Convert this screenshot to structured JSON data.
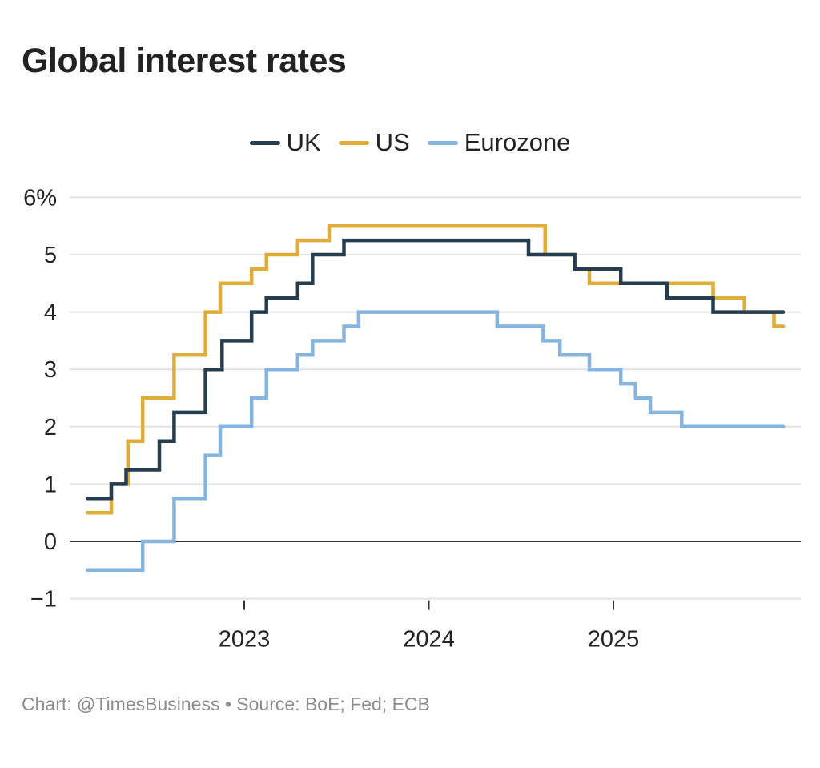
{
  "chart_data": {
    "type": "line",
    "step": true,
    "title": "Global interest rates",
    "xlabel": "",
    "ylabel": "",
    "ylim": [
      -1,
      6
    ],
    "xlim": [
      2022.15,
      2025.92
    ],
    "yticks": [
      6,
      5,
      4,
      3,
      2,
      1,
      0,
      -1
    ],
    "ytick_labels": [
      "6%",
      "5",
      "4",
      "3",
      "2",
      "1",
      "0",
      "−1"
    ],
    "xticks": [
      2023,
      2024,
      2025
    ],
    "xtick_labels": [
      "2023",
      "2024",
      "2025"
    ],
    "grid": true,
    "legend": "top-center",
    "series": [
      {
        "name": "UK",
        "color": "#253d4e",
        "points": [
          [
            2022.15,
            0.75
          ],
          [
            2022.28,
            1.0
          ],
          [
            2022.36,
            1.25
          ],
          [
            2022.54,
            1.75
          ],
          [
            2022.62,
            2.25
          ],
          [
            2022.79,
            3.0
          ],
          [
            2022.88,
            3.5
          ],
          [
            2023.04,
            4.0
          ],
          [
            2023.12,
            4.25
          ],
          [
            2023.29,
            4.5
          ],
          [
            2023.37,
            5.0
          ],
          [
            2023.54,
            5.25
          ],
          [
            2024.54,
            5.0
          ],
          [
            2024.79,
            4.75
          ],
          [
            2025.04,
            4.5
          ],
          [
            2025.29,
            4.25
          ],
          [
            2025.54,
            4.0
          ],
          [
            2025.92,
            4.0
          ]
        ]
      },
      {
        "name": "US",
        "color": "#e0ac3a",
        "points": [
          [
            2022.15,
            0.5
          ],
          [
            2022.28,
            1.0
          ],
          [
            2022.37,
            1.75
          ],
          [
            2022.45,
            2.5
          ],
          [
            2022.62,
            3.25
          ],
          [
            2022.79,
            4.0
          ],
          [
            2022.87,
            4.5
          ],
          [
            2023.04,
            4.75
          ],
          [
            2023.12,
            5.0
          ],
          [
            2023.29,
            5.25
          ],
          [
            2023.46,
            5.5
          ],
          [
            2024.63,
            5.0
          ],
          [
            2024.79,
            4.75
          ],
          [
            2024.87,
            4.5
          ],
          [
            2025.54,
            4.25
          ],
          [
            2025.71,
            4.0
          ],
          [
            2025.87,
            3.75
          ],
          [
            2025.92,
            3.75
          ]
        ]
      },
      {
        "name": "Eurozone",
        "color": "#86b4e0",
        "points": [
          [
            2022.15,
            -0.5
          ],
          [
            2022.45,
            0.0
          ],
          [
            2022.62,
            0.75
          ],
          [
            2022.79,
            1.5
          ],
          [
            2022.87,
            2.0
          ],
          [
            2023.04,
            2.5
          ],
          [
            2023.12,
            3.0
          ],
          [
            2023.29,
            3.25
          ],
          [
            2023.37,
            3.5
          ],
          [
            2023.54,
            3.75
          ],
          [
            2023.62,
            4.0
          ],
          [
            2024.37,
            3.75
          ],
          [
            2024.62,
            3.5
          ],
          [
            2024.71,
            3.25
          ],
          [
            2024.87,
            3.0
          ],
          [
            2025.04,
            2.75
          ],
          [
            2025.12,
            2.5
          ],
          [
            2025.2,
            2.25
          ],
          [
            2025.37,
            2.0
          ],
          [
            2025.92,
            2.0
          ]
        ]
      }
    ]
  },
  "footer": "Chart: @TimesBusiness • Source: BoE; Fed; ECB"
}
